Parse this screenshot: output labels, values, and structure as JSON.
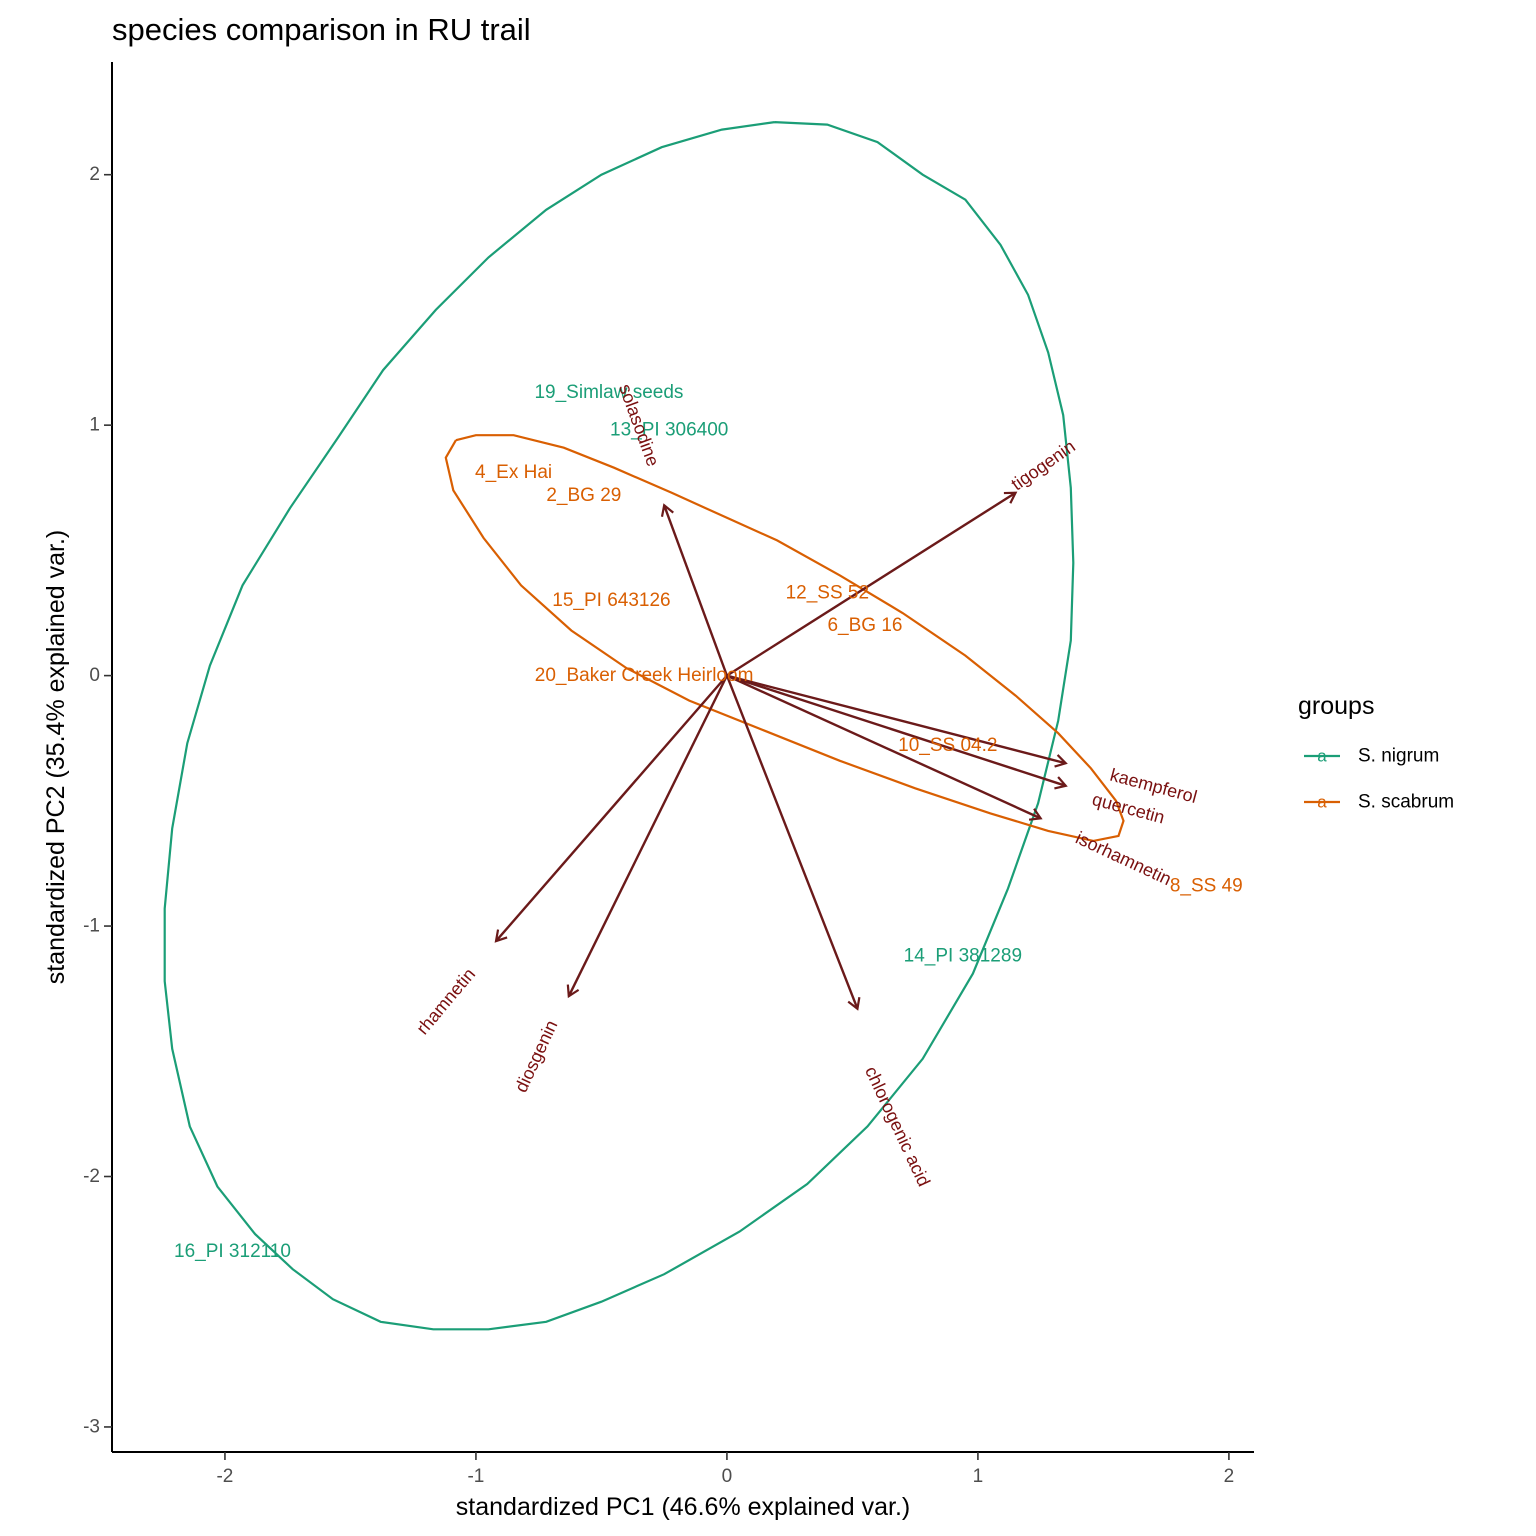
{
  "chart_data": {
    "type": "scatter",
    "title": "species comparison in RU trail",
    "xlabel": "standardized PC1 (46.6% explained var.)",
    "ylabel": "standardized PC2 (35.4% explained var.)",
    "xlim": [
      -2.45,
      2.1
    ],
    "ylim": [
      -3.1,
      2.45
    ],
    "x_ticks": [
      -2,
      -1,
      0,
      1,
      2
    ],
    "x_tick_labels": [
      "-2",
      "-1",
      "0",
      "1",
      "2"
    ],
    "y_ticks": [
      -3,
      -2,
      -1,
      0,
      1,
      2
    ],
    "y_tick_labels": [
      "-3",
      "-2",
      "-1",
      "0",
      "1",
      "2"
    ],
    "grid": false,
    "legend": {
      "title": "groups",
      "placement": "right",
      "key_glyph": "a",
      "entries": [
        {
          "name": "S. nigrum",
          "color": "#1b9e77"
        },
        {
          "name": "S. scabrum",
          "color": "#d95f02"
        }
      ]
    },
    "arrow_color": "#6b1a1a",
    "variable_label_color": "#7a1010",
    "points": [
      {
        "label": "19_Simlaw seeds",
        "x": -0.47,
        "y": 1.13,
        "group": "S. nigrum"
      },
      {
        "label": "13_PI 306400",
        "x": -0.23,
        "y": 0.98,
        "group": "S. nigrum"
      },
      {
        "label": "4_Ex Hai",
        "x": -0.85,
        "y": 0.81,
        "group": "S. scabrum"
      },
      {
        "label": "2_BG 29",
        "x": -0.57,
        "y": 0.72,
        "group": "S. scabrum"
      },
      {
        "label": "15_PI 643126",
        "x": -0.46,
        "y": 0.3,
        "group": "S. scabrum"
      },
      {
        "label": "12_SS 52",
        "x": 0.4,
        "y": 0.33,
        "group": "S. scabrum"
      },
      {
        "label": "6_BG 16",
        "x": 0.55,
        "y": 0.2,
        "group": "S. scabrum"
      },
      {
        "label": "20_Baker Creek Heirloom",
        "x": -0.33,
        "y": 0.0,
        "group": "S. scabrum"
      },
      {
        "label": "10_SS 04.2",
        "x": 0.88,
        "y": -0.28,
        "group": "S. scabrum"
      },
      {
        "label": "8_SS 49",
        "x": 1.91,
        "y": -0.84,
        "group": "S. scabrum"
      },
      {
        "label": "14_PI 381289",
        "x": 0.94,
        "y": -1.12,
        "group": "S. nigrum"
      },
      {
        "label": "16_PI 312110",
        "x": -1.97,
        "y": -2.3,
        "group": "S. nigrum"
      }
    ],
    "variables": [
      {
        "name": "solasodine",
        "x": -0.25,
        "y": 0.68,
        "label_x": -0.35,
        "label_y": 1.0,
        "angle": 70
      },
      {
        "name": "tigogenin",
        "x": 1.15,
        "y": 0.73,
        "label_x": 1.26,
        "label_y": 0.84,
        "angle": -35
      },
      {
        "name": "kaempferol",
        "x": 1.35,
        "y": -0.35,
        "label_x": 1.7,
        "label_y": -0.44,
        "angle": 15
      },
      {
        "name": "quercetin",
        "x": 1.35,
        "y": -0.44,
        "label_x": 1.6,
        "label_y": -0.53,
        "angle": 15
      },
      {
        "name": "isorhamnetin",
        "x": 1.25,
        "y": -0.57,
        "label_x": 1.58,
        "label_y": -0.73,
        "angle": 25
      },
      {
        "name": "chlorogenic acid",
        "x": 0.52,
        "y": -1.33,
        "label_x": 0.68,
        "label_y": -1.8,
        "angle": 65
      },
      {
        "name": "diosgenin",
        "x": -0.63,
        "y": -1.28,
        "label_x": -0.76,
        "label_y": -1.52,
        "angle": -65
      },
      {
        "name": "rhamnetin",
        "x": -0.92,
        "y": -1.06,
        "label_x": -1.12,
        "label_y": -1.3,
        "angle": -50
      }
    ],
    "ellipses": [
      {
        "group": "S. nigrum",
        "points": [
          [
            0.19,
            2.21
          ],
          [
            0.4,
            2.2
          ],
          [
            0.6,
            2.13
          ],
          [
            0.78,
            2.0
          ],
          [
            0.95,
            1.9
          ],
          [
            1.09,
            1.72
          ],
          [
            1.2,
            1.52
          ],
          [
            1.28,
            1.29
          ],
          [
            1.34,
            1.04
          ],
          [
            1.37,
            0.75
          ],
          [
            1.38,
            0.45
          ],
          [
            1.37,
            0.14
          ],
          [
            1.32,
            -0.18
          ],
          [
            1.24,
            -0.51
          ],
          [
            1.12,
            -0.85
          ],
          [
            0.98,
            -1.19
          ],
          [
            0.78,
            -1.53
          ],
          [
            0.56,
            -1.8
          ],
          [
            0.32,
            -2.03
          ],
          [
            0.05,
            -2.22
          ],
          [
            -0.25,
            -2.39
          ],
          [
            -0.5,
            -2.5
          ],
          [
            -0.72,
            -2.58
          ],
          [
            -0.95,
            -2.61
          ],
          [
            -1.17,
            -2.61
          ],
          [
            -1.38,
            -2.58
          ],
          [
            -1.57,
            -2.49
          ],
          [
            -1.73,
            -2.37
          ],
          [
            -1.88,
            -2.23
          ],
          [
            -2.03,
            -2.04
          ],
          [
            -2.14,
            -1.8
          ],
          [
            -2.21,
            -1.49
          ],
          [
            -2.24,
            -1.22
          ],
          [
            -2.24,
            -0.93
          ],
          [
            -2.21,
            -0.61
          ],
          [
            -2.15,
            -0.27
          ],
          [
            -2.06,
            0.04
          ],
          [
            -1.93,
            0.36
          ],
          [
            -1.74,
            0.67
          ],
          [
            -1.55,
            0.95
          ],
          [
            -1.37,
            1.22
          ],
          [
            -1.16,
            1.46
          ],
          [
            -0.95,
            1.67
          ],
          [
            -0.72,
            1.86
          ],
          [
            -0.5,
            2.0
          ],
          [
            -0.26,
            2.11
          ],
          [
            -0.02,
            2.18
          ],
          [
            0.19,
            2.21
          ]
        ]
      },
      {
        "group": "S. scabrum",
        "points": [
          [
            -1.08,
            0.94
          ],
          [
            -1.0,
            0.96
          ],
          [
            -0.85,
            0.96
          ],
          [
            -0.65,
            0.91
          ],
          [
            -0.45,
            0.83
          ],
          [
            -0.22,
            0.73
          ],
          [
            0.0,
            0.63
          ],
          [
            0.2,
            0.54
          ],
          [
            0.45,
            0.4
          ],
          [
            0.7,
            0.25
          ],
          [
            0.95,
            0.08
          ],
          [
            1.15,
            -0.08
          ],
          [
            1.32,
            -0.23
          ],
          [
            1.45,
            -0.37
          ],
          [
            1.55,
            -0.5
          ],
          [
            1.58,
            -0.58
          ],
          [
            1.56,
            -0.64
          ],
          [
            1.46,
            -0.66
          ],
          [
            1.28,
            -0.62
          ],
          [
            1.05,
            -0.55
          ],
          [
            0.75,
            -0.45
          ],
          [
            0.45,
            -0.34
          ],
          [
            0.15,
            -0.22
          ],
          [
            -0.15,
            -0.1
          ],
          [
            -0.4,
            0.03
          ],
          [
            -0.62,
            0.18
          ],
          [
            -0.82,
            0.36
          ],
          [
            -0.97,
            0.55
          ],
          [
            -1.09,
            0.74
          ],
          [
            -1.12,
            0.87
          ],
          [
            -1.08,
            0.94
          ]
        ]
      }
    ]
  }
}
